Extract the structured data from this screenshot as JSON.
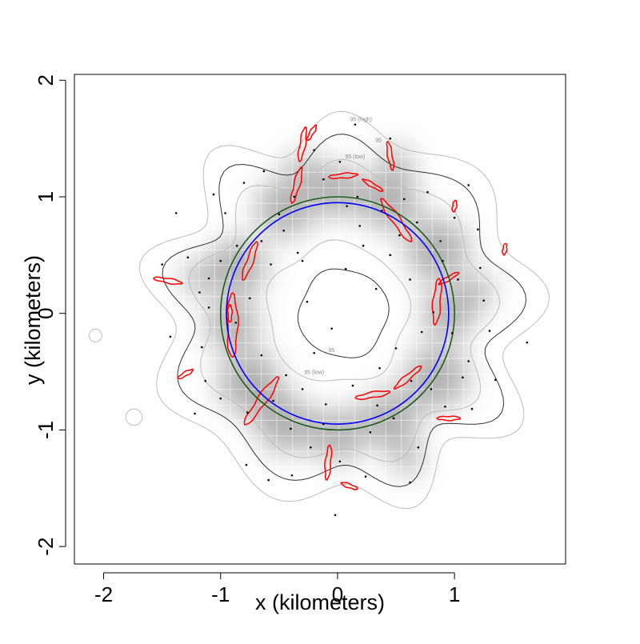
{
  "chart_data": {
    "type": "contour",
    "title": "",
    "xlabel": "x (kilometers)",
    "ylabel": "y (kilometers)",
    "xlim": [
      -2.25,
      1.95
    ],
    "ylim": [
      -2.15,
      2.05
    ],
    "xticks": [
      -2,
      -1,
      0,
      1
    ],
    "xtick_labels": [
      "-2",
      "-1",
      "0",
      "1"
    ],
    "yticks": [
      -2,
      -1,
      0,
      1,
      2
    ],
    "ytick_labels": [
      "-2",
      "-1",
      "0",
      "1",
      "2"
    ],
    "grid": false,
    "legend": "none",
    "colors": {
      "density_dark": "#6e6e6e",
      "grid_light": "#ffffff",
      "contour_inner": "#333333",
      "contour_outer": "#bdbdbd",
      "red_outline": "#ff0000",
      "green_circle": "#1e5c1e",
      "blue_circle": "#0000ff",
      "points": "#000000"
    },
    "contour_labels": [
      {
        "text": "95 (high)",
        "x": 0.2,
        "y": 1.65
      },
      {
        "text": "95",
        "x": 0.35,
        "y": 1.47
      },
      {
        "text": "95 (low)",
        "x": 0.15,
        "y": 1.33
      },
      {
        "text": "95",
        "x": -0.05,
        "y": -0.33
      },
      {
        "text": "95 (low)",
        "x": -0.2,
        "y": -0.52
      }
    ],
    "circles": [
      {
        "name": "green",
        "cx": 0.0,
        "cy": 0.0,
        "r": 1.0
      },
      {
        "name": "blue",
        "cx": 0.0,
        "cy": 0.0,
        "r": 0.95
      }
    ],
    "contours": [
      {
        "level": "95 (high)",
        "style": "outer",
        "cx": 0.05,
        "cy": 0.0,
        "r": 1.6,
        "amp": 0.09,
        "freq": 9,
        "phase": 0.4
      },
      {
        "level": "95",
        "style": "inner",
        "cx": 0.05,
        "cy": 0.0,
        "r": 1.42,
        "amp": 0.09,
        "freq": 9,
        "phase": 0.4
      },
      {
        "level": "95 (low)",
        "style": "outer",
        "cx": 0.05,
        "cy": 0.0,
        "r": 1.24,
        "amp": 0.07,
        "freq": 9,
        "phase": 0.4
      },
      {
        "level": "95 (low)",
        "style": "outer",
        "cx": 0.0,
        "cy": 0.0,
        "r": 0.6,
        "amp": 0.05,
        "freq": 5,
        "phase": 0.2
      },
      {
        "level": "95",
        "style": "inner",
        "cx": 0.05,
        "cy": 0.0,
        "r": 0.38,
        "amp": 0.04,
        "freq": 4,
        "phase": 0.0
      },
      {
        "level": "95 (high)",
        "style": "outer",
        "cx": -2.07,
        "cy": -0.19,
        "r": 0.055,
        "amp": 0.0,
        "freq": 1,
        "phase": 0.0
      },
      {
        "level": "95 (high)",
        "style": "outer",
        "cx": -1.74,
        "cy": -0.89,
        "r": 0.07,
        "amp": 0.0,
        "freq": 1,
        "phase": 0.0
      }
    ],
    "density_blobs": [
      {
        "x": -0.85,
        "y": 0.4,
        "w": 0.55
      },
      {
        "x": -0.9,
        "y": -0.1,
        "w": 0.5
      },
      {
        "x": -0.75,
        "y": -0.6,
        "w": 0.6
      },
      {
        "x": -0.45,
        "y": 0.9,
        "w": 0.55
      },
      {
        "x": 0.0,
        "y": 1.05,
        "w": 0.5
      },
      {
        "x": 0.45,
        "y": 0.95,
        "w": 0.55
      },
      {
        "x": 0.85,
        "y": 0.55,
        "w": 0.6
      },
      {
        "x": 0.95,
        "y": 0.0,
        "w": 0.5
      },
      {
        "x": 0.85,
        "y": -0.55,
        "w": 0.6
      },
      {
        "x": 0.45,
        "y": -0.9,
        "w": 0.55
      },
      {
        "x": 0.0,
        "y": -1.05,
        "w": 0.5
      },
      {
        "x": -0.45,
        "y": -0.95,
        "w": 0.55
      },
      {
        "x": -0.3,
        "y": 1.25,
        "w": 0.3
      },
      {
        "x": 0.5,
        "y": 1.3,
        "w": 0.3
      },
      {
        "x": 1.2,
        "y": 0.2,
        "w": 0.3
      },
      {
        "x": -1.2,
        "y": 0.3,
        "w": 0.3
      },
      {
        "x": 0.6,
        "y": -1.25,
        "w": 0.3
      }
    ],
    "red_outlines": [
      {
        "x": -0.3,
        "y": 1.45,
        "len": 0.3,
        "angle": 80
      },
      {
        "x": -0.35,
        "y": 1.1,
        "len": 0.32,
        "angle": 75
      },
      {
        "x": 0.05,
        "y": 1.18,
        "len": 0.25,
        "angle": 5
      },
      {
        "x": 0.45,
        "y": 1.35,
        "len": 0.25,
        "angle": 100
      },
      {
        "x": 0.5,
        "y": 0.8,
        "len": 0.45,
        "angle": -55
      },
      {
        "x": 0.3,
        "y": 1.1,
        "len": 0.2,
        "angle": -30
      },
      {
        "x": -0.75,
        "y": 0.45,
        "len": 0.35,
        "angle": 70
      },
      {
        "x": -0.9,
        "y": -0.1,
        "len": 0.55,
        "angle": 90
      },
      {
        "x": -0.65,
        "y": -0.75,
        "len": 0.5,
        "angle": 55
      },
      {
        "x": 0.3,
        "y": -0.7,
        "len": 0.3,
        "angle": 10
      },
      {
        "x": 0.85,
        "y": 0.1,
        "len": 0.4,
        "angle": 85
      },
      {
        "x": 0.6,
        "y": -0.55,
        "len": 0.3,
        "angle": 40
      },
      {
        "x": 0.95,
        "y": 0.3,
        "len": 0.2,
        "angle": 30
      },
      {
        "x": 0.95,
        "y": -0.9,
        "len": 0.2,
        "angle": 0
      },
      {
        "x": -1.45,
        "y": 0.28,
        "len": 0.25,
        "angle": -10
      },
      {
        "x": -1.3,
        "y": -0.52,
        "len": 0.15,
        "angle": 30
      },
      {
        "x": -0.08,
        "y": -1.28,
        "len": 0.3,
        "angle": 85
      },
      {
        "x": 0.1,
        "y": -1.48,
        "len": 0.15,
        "angle": -20
      },
      {
        "x": 1.43,
        "y": 0.55,
        "len": 0.1,
        "angle": 80
      },
      {
        "x": 1.0,
        "y": 0.92,
        "len": 0.1,
        "angle": 80
      },
      {
        "x": -0.92,
        "y": 0.0,
        "len": 0.15,
        "angle": 90
      },
      {
        "x": -0.22,
        "y": 1.55,
        "len": 0.15,
        "angle": 60
      }
    ],
    "points": [
      [
        -0.02,
        -1.73
      ],
      [
        -1.1,
        0.3
      ],
      [
        0.8,
        -0.65
      ],
      [
        -0.3,
        0.45
      ],
      [
        0.5,
        -0.3
      ],
      [
        -1.38,
        0.86
      ],
      [
        -0.4,
        -0.99
      ],
      [
        -0.65,
        0.62
      ],
      [
        0.17,
        1.0
      ],
      [
        -0.46,
        0.71
      ],
      [
        0.88,
        0.62
      ],
      [
        -0.05,
        -0.13
      ],
      [
        -0.77,
        -0.85
      ],
      [
        1.25,
        0.11
      ],
      [
        -0.3,
        -0.65
      ],
      [
        0.48,
        -0.9
      ],
      [
        0.19,
        0.75
      ],
      [
        1.12,
        1.1
      ],
      [
        -1.16,
        -0.29
      ],
      [
        0.62,
        0.29
      ],
      [
        -1.13,
        -0.58
      ],
      [
        0.36,
        -0.47
      ],
      [
        -0.2,
        1.4
      ],
      [
        0.02,
        -1.27
      ],
      [
        -0.96,
        0.86
      ],
      [
        0.72,
        -0.16
      ],
      [
        1.35,
        -0.57
      ],
      [
        -0.57,
        0.42
      ],
      [
        -0.39,
        -1.39
      ],
      [
        0.22,
        0.58
      ],
      [
        -0.59,
        -1.43
      ],
      [
        0.45,
        1.5
      ],
      [
        1.0,
        0.82
      ],
      [
        -1.22,
        -0.86
      ],
      [
        -0.26,
        0.1
      ],
      [
        1.12,
        -0.41
      ],
      [
        0.28,
        -1.02
      ],
      [
        1.2,
        0.72
      ],
      [
        -0.65,
        -0.36
      ],
      [
        0.53,
        0.67
      ],
      [
        -0.86,
        0.58
      ],
      [
        0.07,
        0.38
      ],
      [
        -0.12,
        -0.95
      ],
      [
        0.98,
        -0.17
      ],
      [
        -1.43,
        -0.2
      ],
      [
        0.34,
        -0.79
      ],
      [
        -0.37,
        1.0
      ],
      [
        0.77,
        1.04
      ],
      [
        -1.1,
        0.05
      ],
      [
        0.69,
        -1.15
      ],
      [
        1.22,
        0.39
      ],
      [
        -1.06,
        1.02
      ],
      [
        -0.78,
        -1.3
      ],
      [
        -0.12,
        1.15
      ],
      [
        -1.28,
        0.48
      ],
      [
        0.92,
        -0.8
      ],
      [
        0.13,
        -0.62
      ],
      [
        1.07,
        -0.55
      ],
      [
        -0.5,
        0.85
      ],
      [
        0.57,
        0.98
      ],
      [
        -1.0,
        -0.73
      ],
      [
        0.33,
        0.21
      ],
      [
        -0.63,
        1.22
      ],
      [
        1.3,
        -0.15
      ],
      [
        -0.2,
        -0.34
      ],
      [
        0.62,
        -1.45
      ],
      [
        0.02,
        1.3
      ],
      [
        -0.87,
        -0.08
      ],
      [
        0.82,
        0.01
      ],
      [
        -0.44,
        -0.53
      ],
      [
        1.62,
        -0.25
      ],
      [
        -1.5,
        0.42
      ],
      [
        0.45,
        0.5
      ],
      [
        -0.75,
        0.13
      ],
      [
        0.24,
        -1.4
      ],
      [
        1.03,
        0.29
      ],
      [
        -0.34,
        0.52
      ],
      [
        0.63,
        -0.58
      ],
      [
        -1.0,
        0.45
      ],
      [
        0.15,
        1.62
      ],
      [
        -0.8,
        1.12
      ],
      [
        0.68,
        0.78
      ],
      [
        -0.23,
        -1.15
      ],
      [
        0.38,
        0.88
      ],
      [
        1.15,
        -0.82
      ],
      [
        -0.55,
        -0.75
      ],
      [
        0.08,
        0.92
      ],
      [
        -1.18,
        0.18
      ],
      [
        0.9,
        0.45
      ],
      [
        -0.1,
        -0.78
      ]
    ]
  }
}
